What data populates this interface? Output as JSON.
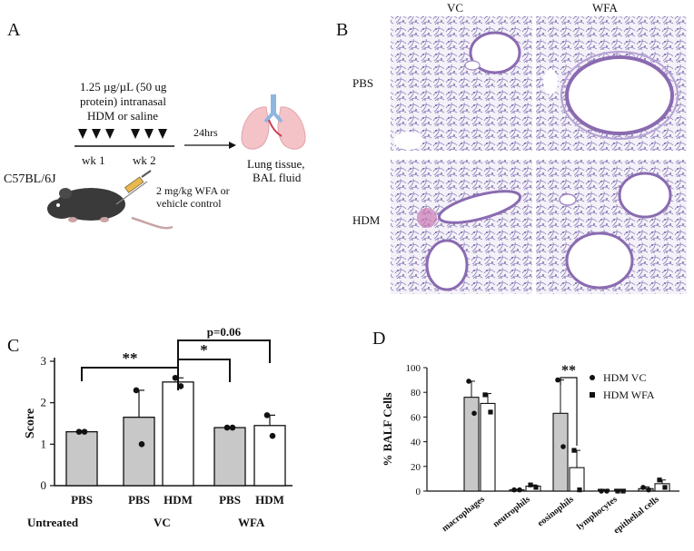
{
  "panel_a": {
    "letter": "A",
    "dose_line1": "1.25 µg/µL (50 ug",
    "dose_line2": "protein) intranasal",
    "dose_line3": "HDM or saline",
    "week1": "wk 1",
    "week2": "wk 2",
    "interval": "24hrs",
    "endpoint_line1": "Lung tissue,",
    "endpoint_line2": "BAL fluid",
    "strain": "C57BL/6J",
    "treatment_line1": "2 mg/kg WFA or",
    "treatment_line2": "vehicle control"
  },
  "panel_b": {
    "letter": "B",
    "col_labels": [
      "VC",
      "WFA"
    ],
    "row_labels": [
      "PBS",
      "HDM"
    ]
  },
  "chart_data": [
    {
      "panel": "C",
      "type": "bar",
      "title": "",
      "ylabel": "Score",
      "ylim": [
        0,
        3
      ],
      "yticks": [
        0,
        1,
        2,
        3
      ],
      "categories": [
        "PBS",
        "PBS",
        "HDM",
        "PBS",
        "HDM"
      ],
      "groups": [
        "Untreated",
        "VC",
        "WFA"
      ],
      "values": [
        1.3,
        1.65,
        2.5,
        1.4,
        1.45
      ],
      "errors": [
        0.0,
        0.65,
        0.1,
        0.0,
        0.25
      ],
      "points": [
        [
          1.3,
          1.3
        ],
        [
          2.3,
          1.0
        ],
        [
          2.6,
          2.4
        ],
        [
          1.4,
          1.4
        ],
        [
          1.7,
          1.2
        ]
      ],
      "fills": [
        "#c8c8c8",
        "#c8c8c8",
        "#ffffff",
        "#c8c8c8",
        "#ffffff"
      ],
      "significance": [
        {
          "from": 0,
          "to": 2,
          "label": "**"
        },
        {
          "from": 2,
          "to": 3,
          "label": "*"
        },
        {
          "from": 2,
          "to": 4,
          "label": "p=0.06"
        }
      ]
    },
    {
      "panel": "D",
      "type": "bar",
      "title": "",
      "ylabel": "% BALF Cells",
      "ylim": [
        0,
        100
      ],
      "yticks": [
        0,
        20,
        40,
        60,
        80,
        100
      ],
      "categories": [
        "macrophages",
        "neutrophils",
        "eosinophils",
        "lymphocytes",
        "epithelial cells"
      ],
      "series": [
        {
          "name": "HDM VC",
          "values": [
            76,
            1,
            63,
            0,
            2
          ],
          "errors": [
            13,
            0.5,
            27,
            0,
            1.5
          ],
          "points": [
            [
              89,
              63
            ],
            [
              1,
              1
            ],
            [
              90,
              36
            ],
            [
              0,
              0
            ],
            [
              3,
              1
            ]
          ],
          "fill": "#c8c8c8",
          "marker": "circle"
        },
        {
          "name": "HDM WFA",
          "values": [
            71,
            4,
            19,
            0,
            6
          ],
          "errors": [
            8,
            1,
            14,
            0,
            3
          ],
          "points": [
            [
              78,
              64
            ],
            [
              5,
              3
            ],
            [
              33,
              1
            ],
            [
              0,
              0
            ],
            [
              9,
              3
            ]
          ],
          "fill": "#ffffff",
          "marker": "square"
        }
      ],
      "significance": [
        {
          "category": 2,
          "label": "**"
        }
      ],
      "legend": "top-right"
    }
  ]
}
